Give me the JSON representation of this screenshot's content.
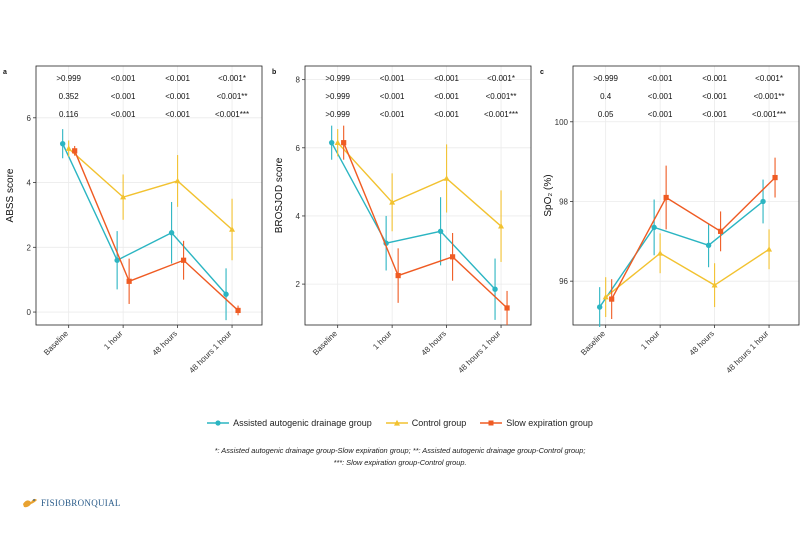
{
  "chart_data": [
    {
      "type": "line",
      "panel_label": "a",
      "ylabel": "ABSS score",
      "ylim": [
        -0.4,
        7.6
      ],
      "yticks": [
        0,
        2,
        4,
        6
      ],
      "ytick_labels": [
        "0",
        "2",
        "4",
        "6"
      ],
      "categories": [
        "Baseline",
        "1 hour",
        "48 hours",
        "48 hours 1 hour"
      ],
      "pvalue_rows": [
        [
          ">0.999",
          "<0.001",
          "<0.001",
          "<0.001*"
        ],
        [
          "0.352",
          "<0.001",
          "<0.001",
          "<0.001**"
        ],
        [
          "0.116",
          "<0.001",
          "<0.001",
          "<0.001***"
        ]
      ],
      "series": [
        {
          "name": "Assisted autogenic drainage group",
          "values": [
            5.2,
            1.6,
            2.45,
            0.55
          ],
          "err": [
            0.45,
            0.9,
            0.95,
            0.8
          ]
        },
        {
          "name": "Control group",
          "values": [
            5.05,
            3.55,
            4.05,
            2.55
          ],
          "err": [
            0.25,
            0.7,
            0.8,
            0.95
          ]
        },
        {
          "name": "Slow expiration group",
          "values": [
            4.98,
            0.95,
            1.6,
            0.05
          ],
          "err": [
            0.15,
            0.7,
            0.6,
            0.15
          ]
        }
      ]
    },
    {
      "type": "line",
      "panel_label": "b",
      "ylabel": "BROSJOD score",
      "ylim": [
        0.8,
        8.4
      ],
      "yticks": [
        2,
        4,
        6,
        8
      ],
      "ytick_labels": [
        "2",
        "4",
        "6",
        "8"
      ],
      "categories": [
        "Baseline",
        "1 hour",
        "48 hours",
        "48 hours 1 hour"
      ],
      "pvalue_rows": [
        [
          ">0.999",
          "<0.001",
          "<0.001",
          "<0.001*"
        ],
        [
          ">0.999",
          "<0.001",
          "<0.001",
          "<0.001**"
        ],
        [
          ">0.999",
          "<0.001",
          "<0.001",
          "<0.001***"
        ]
      ],
      "series": [
        {
          "name": "Assisted autogenic drainage group",
          "values": [
            6.15,
            3.2,
            3.55,
            1.85
          ],
          "err": [
            0.5,
            0.8,
            1.0,
            0.9
          ]
        },
        {
          "name": "Control group",
          "values": [
            6.15,
            4.4,
            5.1,
            3.7
          ],
          "err": [
            0.4,
            0.85,
            1.0,
            1.05
          ]
        },
        {
          "name": "Slow expiration group",
          "values": [
            6.15,
            2.25,
            2.8,
            1.3
          ],
          "err": [
            0.5,
            0.8,
            0.7,
            0.5
          ]
        }
      ]
    },
    {
      "type": "line",
      "panel_label": "c",
      "ylabel": "SpO₂ (%)",
      "ylim": [
        94.9,
        101.4
      ],
      "yticks": [
        96,
        98,
        100
      ],
      "ytick_labels": [
        "96",
        "98",
        "100"
      ],
      "categories": [
        "Baseline",
        "1 hour",
        "48 hours",
        "48 hours 1 hour"
      ],
      "pvalue_rows": [
        [
          ">0.999",
          "<0.001",
          "<0.001",
          "<0.001*"
        ],
        [
          "0.4",
          "<0.001",
          "<0.001",
          "<0.001**"
        ],
        [
          "0.05",
          "<0.001",
          "<0.001",
          "<0.001***"
        ]
      ],
      "series": [
        {
          "name": "Assisted autogenic drainage group",
          "values": [
            95.35,
            97.35,
            96.9,
            98.0
          ],
          "err": [
            0.5,
            0.7,
            0.55,
            0.55
          ]
        },
        {
          "name": "Control group",
          "values": [
            95.6,
            96.7,
            95.9,
            96.8
          ],
          "err": [
            0.5,
            0.5,
            0.55,
            0.5
          ]
        },
        {
          "name": "Slow expiration group",
          "values": [
            95.55,
            98.1,
            97.25,
            98.6
          ],
          "err": [
            0.5,
            0.8,
            0.5,
            0.5
          ]
        }
      ]
    }
  ],
  "colors": {
    "Assisted autogenic drainage group": "#2bb5c2",
    "Control group": "#f2c230",
    "Slow expiration group": "#ef5b23",
    "panel_border": "#222222",
    "grid": "#ebebeb"
  },
  "legend": [
    {
      "label": "Assisted autogenic drainage group",
      "marker": "circle"
    },
    {
      "label": "Control group",
      "marker": "triangle"
    },
    {
      "label": "Slow expiration group",
      "marker": "square"
    }
  ],
  "footnote": {
    "line1": "*: Assisted autogenic drainage group-Slow expiration group; **: Assisted autogenic drainage group-Control group;",
    "line2": "***: Slow expiration group-Control group."
  },
  "logo": {
    "text": "FISIOBRONQUIAL",
    "icon": "logo-bird-icon"
  }
}
